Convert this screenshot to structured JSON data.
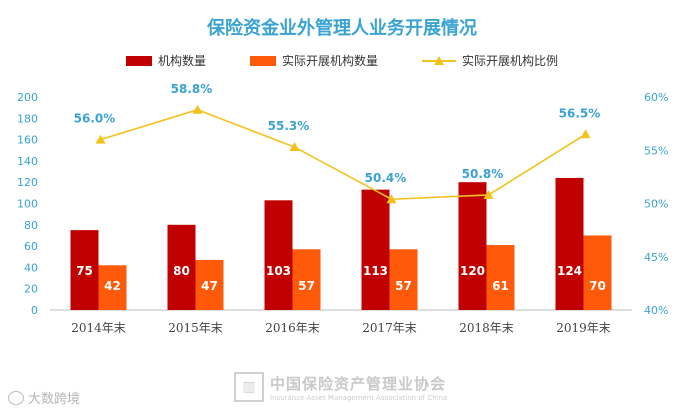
{
  "chart_data": {
    "type": "bar",
    "title": "保险资金业外管理人业务开展情况",
    "categories": [
      "2014年末",
      "2015年末",
      "2016年末",
      "2017年末",
      "2018年末",
      "2019年末"
    ],
    "series": [
      {
        "name": "机构数量",
        "type": "bar",
        "axis": "left",
        "color": "#c00000",
        "values": [
          75,
          80,
          103,
          113,
          120,
          124
        ]
      },
      {
        "name": "实际开展机构数量",
        "type": "bar",
        "axis": "left",
        "color": "#ff5a0a",
        "values": [
          42,
          47,
          57,
          57,
          61,
          70
        ]
      },
      {
        "name": "实际开展机构比例",
        "type": "line",
        "axis": "right",
        "color": "#f2c21b",
        "values": [
          56.0,
          58.8,
          55.3,
          50.4,
          50.8,
          56.5
        ]
      }
    ],
    "line_labels": [
      "56.0%",
      "58.8%",
      "55.3%",
      "50.4%",
      "50.8%",
      "56.5%"
    ],
    "y_left": {
      "min": 0,
      "max": 200,
      "ticks": [
        0,
        20,
        40,
        60,
        80,
        100,
        120,
        140,
        160,
        180,
        200
      ]
    },
    "y_right": {
      "min": 40,
      "max": 60,
      "ticks": [
        "40%",
        "45%",
        "50%",
        "55%",
        "60%"
      ]
    },
    "legend_position": "top-center",
    "grid": false
  },
  "colors": {
    "title": "#3aa3d1",
    "axis_text": "#3aa3d1",
    "category_text": "#444444",
    "data_label": "#ffffff"
  },
  "watermark": {
    "cn": "中国保险资产管理业协会",
    "en": "Insurance Asset Management Association of China",
    "logo": "logo-mark"
  },
  "source": {
    "icon": "circle-icon",
    "text": "大数跨境"
  }
}
